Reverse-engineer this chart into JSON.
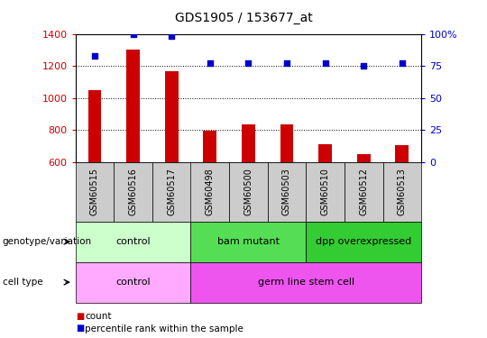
{
  "title": "GDS1905 / 153677_at",
  "samples": [
    "GSM60515",
    "GSM60516",
    "GSM60517",
    "GSM60498",
    "GSM60500",
    "GSM60503",
    "GSM60510",
    "GSM60512",
    "GSM60513"
  ],
  "counts": [
    1050,
    1300,
    1165,
    795,
    835,
    835,
    710,
    650,
    705
  ],
  "percentiles": [
    83,
    100,
    98,
    77,
    77,
    77,
    77,
    75,
    77
  ],
  "ylim_left": [
    600,
    1400
  ],
  "ylim_right": [
    0,
    100
  ],
  "yticks_left": [
    600,
    800,
    1000,
    1200,
    1400
  ],
  "yticks_right": [
    0,
    25,
    50,
    75,
    100
  ],
  "bar_color": "#cc0000",
  "dot_color": "#0000cc",
  "bar_width": 0.35,
  "genotype_groups": [
    {
      "label": "control",
      "start": 0,
      "end": 3,
      "color": "#ccffcc"
    },
    {
      "label": "bam mutant",
      "start": 3,
      "end": 6,
      "color": "#55dd55"
    },
    {
      "label": "dpp overexpressed",
      "start": 6,
      "end": 9,
      "color": "#33cc33"
    }
  ],
  "celltype_groups": [
    {
      "label": "control",
      "start": 0,
      "end": 3,
      "color": "#ffaaff"
    },
    {
      "label": "germ line stem cell",
      "start": 3,
      "end": 9,
      "color": "#ee55ee"
    }
  ],
  "row_labels": [
    "genotype/variation",
    "cell type"
  ],
  "legend_items": [
    {
      "color": "#cc0000",
      "label": "count"
    },
    {
      "color": "#0000cc",
      "label": "percentile rank within the sample"
    }
  ],
  "left_tick_color": "#cc0000",
  "right_tick_color": "#0000cc",
  "xtick_bg_color": "#cccccc",
  "background_color": "#ffffff",
  "grid_color": "#000000",
  "right_tick_labels": [
    "0",
    "25",
    "50",
    "75",
    "100%"
  ]
}
